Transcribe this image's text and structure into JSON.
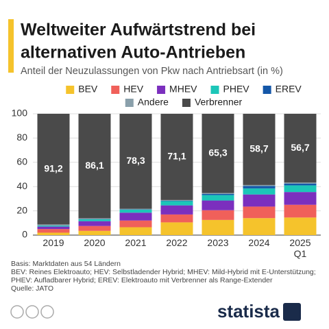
{
  "chart_data": {
    "type": "stacked_bar",
    "title": [
      "Weltweiter Aufwärtstrend bei",
      "alternativen Auto-Antrieben"
    ],
    "subtitle": "Anteil der Neuzulassungen von Pkw nach Antriebsart (in %)",
    "categories": [
      "2019",
      "2020",
      "2021",
      "2022",
      "2023",
      "2024",
      "2025 Q1"
    ],
    "series": [
      {
        "name": "BEV",
        "color": "#f5c32c",
        "values": [
          2,
          3.5,
          6.5,
          10.5,
          12.5,
          14,
          14.5
        ]
      },
      {
        "name": "HEV",
        "color": "#f0605a",
        "values": [
          3,
          4,
          5.5,
          6.5,
          8,
          9.5,
          10.5
        ]
      },
      {
        "name": "MHEV",
        "color": "#7b2fbe",
        "values": [
          2,
          4,
          6.5,
          7.5,
          8,
          10,
          10.5
        ]
      },
      {
        "name": "PHEV",
        "color": "#1cc6b8",
        "values": [
          0.8,
          1.5,
          2.5,
          3.5,
          4.5,
          5,
          5.5
        ]
      },
      {
        "name": "EREV",
        "color": "#1457a8",
        "values": [
          0.1,
          0.2,
          0.2,
          0.4,
          1,
          2,
          1.5
        ]
      },
      {
        "name": "Andere",
        "color": "#8aa0ab",
        "values": [
          0.9,
          0.7,
          0.5,
          0.5,
          0.7,
          0.8,
          0.8
        ]
      },
      {
        "name": "Verbrenner",
        "color": "#4a4a4a",
        "values": [
          91.2,
          86.1,
          78.3,
          71.1,
          65.3,
          58.7,
          56.7
        ],
        "value_labels": [
          "91,2",
          "86,1",
          "78,3",
          "71,1",
          "65,3",
          "58,7",
          "56,7"
        ]
      }
    ],
    "ylim": [
      0,
      100
    ],
    "yticks": [
      0,
      20,
      40,
      60,
      80,
      100
    ],
    "grid": true,
    "footnotes": [
      "Basis: Marktdaten aus 54 Ländern",
      "BEV: Reines Elektroauto; HEV: Selbstladender Hybrid; MHEV: Mild-Hybrid mit E-Unterstützung;",
      "PHEV: Aufladbarer Hybrid; EREV: Elektroauto mit Verbrenner als Range-Extender",
      "Quelle: JATO"
    ],
    "logo": "statista"
  }
}
